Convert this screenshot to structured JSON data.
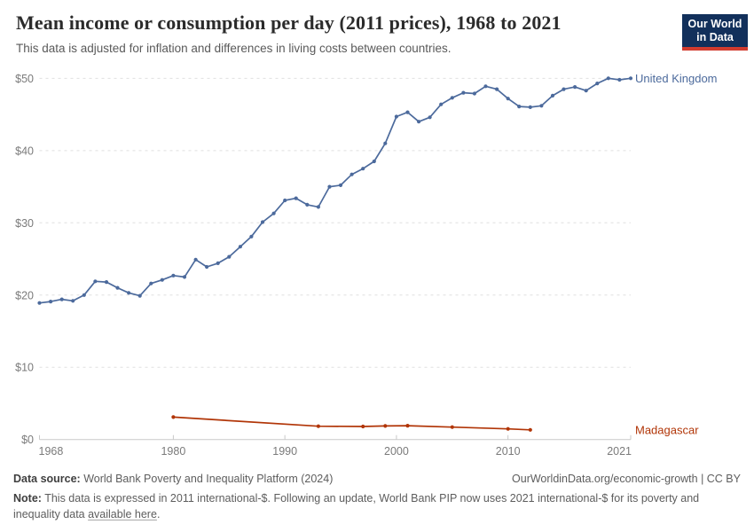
{
  "header": {
    "title": "Mean income or consumption per day (2011 prices), 1968 to 2021",
    "subtitle": "This data is adjusted for inflation and differences in living costs between countries."
  },
  "logo": {
    "line1": "Our World",
    "line2": "in Data"
  },
  "footer": {
    "source_label": "Data source:",
    "source": " World Bank Poverty and Inequality Platform (2024)",
    "rights": "OurWorldinData.org/economic-growth | CC BY",
    "note_label": "Note:",
    "note_before_link": " This data is expressed in 2011 international-$. Following an update, World Bank PIP now uses 2021 international-$ for its poverty and inequality data ",
    "note_link": "available here",
    "note_after_link": "."
  },
  "colors": {
    "uk_line": "#4C6A9C",
    "madagascar_line": "#B13507",
    "grid": "#e0e0e0",
    "axis": "#c9c9c9",
    "tick_text": "#7a7a7a",
    "logo_navy": "#12305B",
    "logo_red": "#D23B2E"
  },
  "chart_data": {
    "type": "line",
    "title": "Mean income or consumption per day (2011 prices), 1968 to 2021",
    "xlabel": "",
    "ylabel": "",
    "xlim": [
      1968,
      2021
    ],
    "ylim": [
      0,
      50
    ],
    "x_ticks": [
      1968,
      1980,
      1990,
      2000,
      2010,
      2021
    ],
    "y_ticks": [
      0,
      10,
      20,
      30,
      40,
      50
    ],
    "y_tick_prefix": "$",
    "grid": "horizontal-dashed",
    "legend_position": "right-of-line-end",
    "series": [
      {
        "name": "United Kingdom",
        "color": "#4C6A9C",
        "points": [
          [
            1968,
            18.9
          ],
          [
            1969,
            19.1
          ],
          [
            1970,
            19.4
          ],
          [
            1971,
            19.2
          ],
          [
            1972,
            20.0
          ],
          [
            1973,
            21.9
          ],
          [
            1974,
            21.8
          ],
          [
            1975,
            21.0
          ],
          [
            1976,
            20.3
          ],
          [
            1977,
            19.9
          ],
          [
            1978,
            21.6
          ],
          [
            1979,
            22.1
          ],
          [
            1980,
            22.7
          ],
          [
            1981,
            22.5
          ],
          [
            1982,
            24.9
          ],
          [
            1983,
            23.9
          ],
          [
            1984,
            24.4
          ],
          [
            1985,
            25.3
          ],
          [
            1986,
            26.7
          ],
          [
            1987,
            28.1
          ],
          [
            1988,
            30.1
          ],
          [
            1989,
            31.3
          ],
          [
            1990,
            33.1
          ],
          [
            1991,
            33.4
          ],
          [
            1992,
            32.5
          ],
          [
            1993,
            32.2
          ],
          [
            1994,
            35.0
          ],
          [
            1995,
            35.2
          ],
          [
            1996,
            36.7
          ],
          [
            1997,
            37.5
          ],
          [
            1998,
            38.5
          ],
          [
            1999,
            41.0
          ],
          [
            2000,
            44.7
          ],
          [
            2001,
            45.3
          ],
          [
            2002,
            44.0
          ],
          [
            2003,
            44.6
          ],
          [
            2004,
            46.4
          ],
          [
            2005,
            47.3
          ],
          [
            2006,
            48.0
          ],
          [
            2007,
            47.9
          ],
          [
            2008,
            48.9
          ],
          [
            2009,
            48.5
          ],
          [
            2010,
            47.2
          ],
          [
            2011,
            46.1
          ],
          [
            2012,
            46.0
          ],
          [
            2013,
            46.2
          ],
          [
            2014,
            47.6
          ],
          [
            2015,
            48.5
          ],
          [
            2016,
            48.8
          ],
          [
            2017,
            48.3
          ],
          [
            2018,
            49.3
          ],
          [
            2019,
            50.0
          ],
          [
            2020,
            49.8
          ],
          [
            2021,
            50.0
          ]
        ]
      },
      {
        "name": "Madagascar",
        "color": "#B13507",
        "points": [
          [
            1980,
            3.11
          ],
          [
            1993,
            1.84
          ],
          [
            1997,
            1.8
          ],
          [
            1999,
            1.88
          ],
          [
            2001,
            1.92
          ],
          [
            2005,
            1.72
          ],
          [
            2010,
            1.47
          ],
          [
            2012,
            1.34
          ]
        ]
      }
    ]
  }
}
